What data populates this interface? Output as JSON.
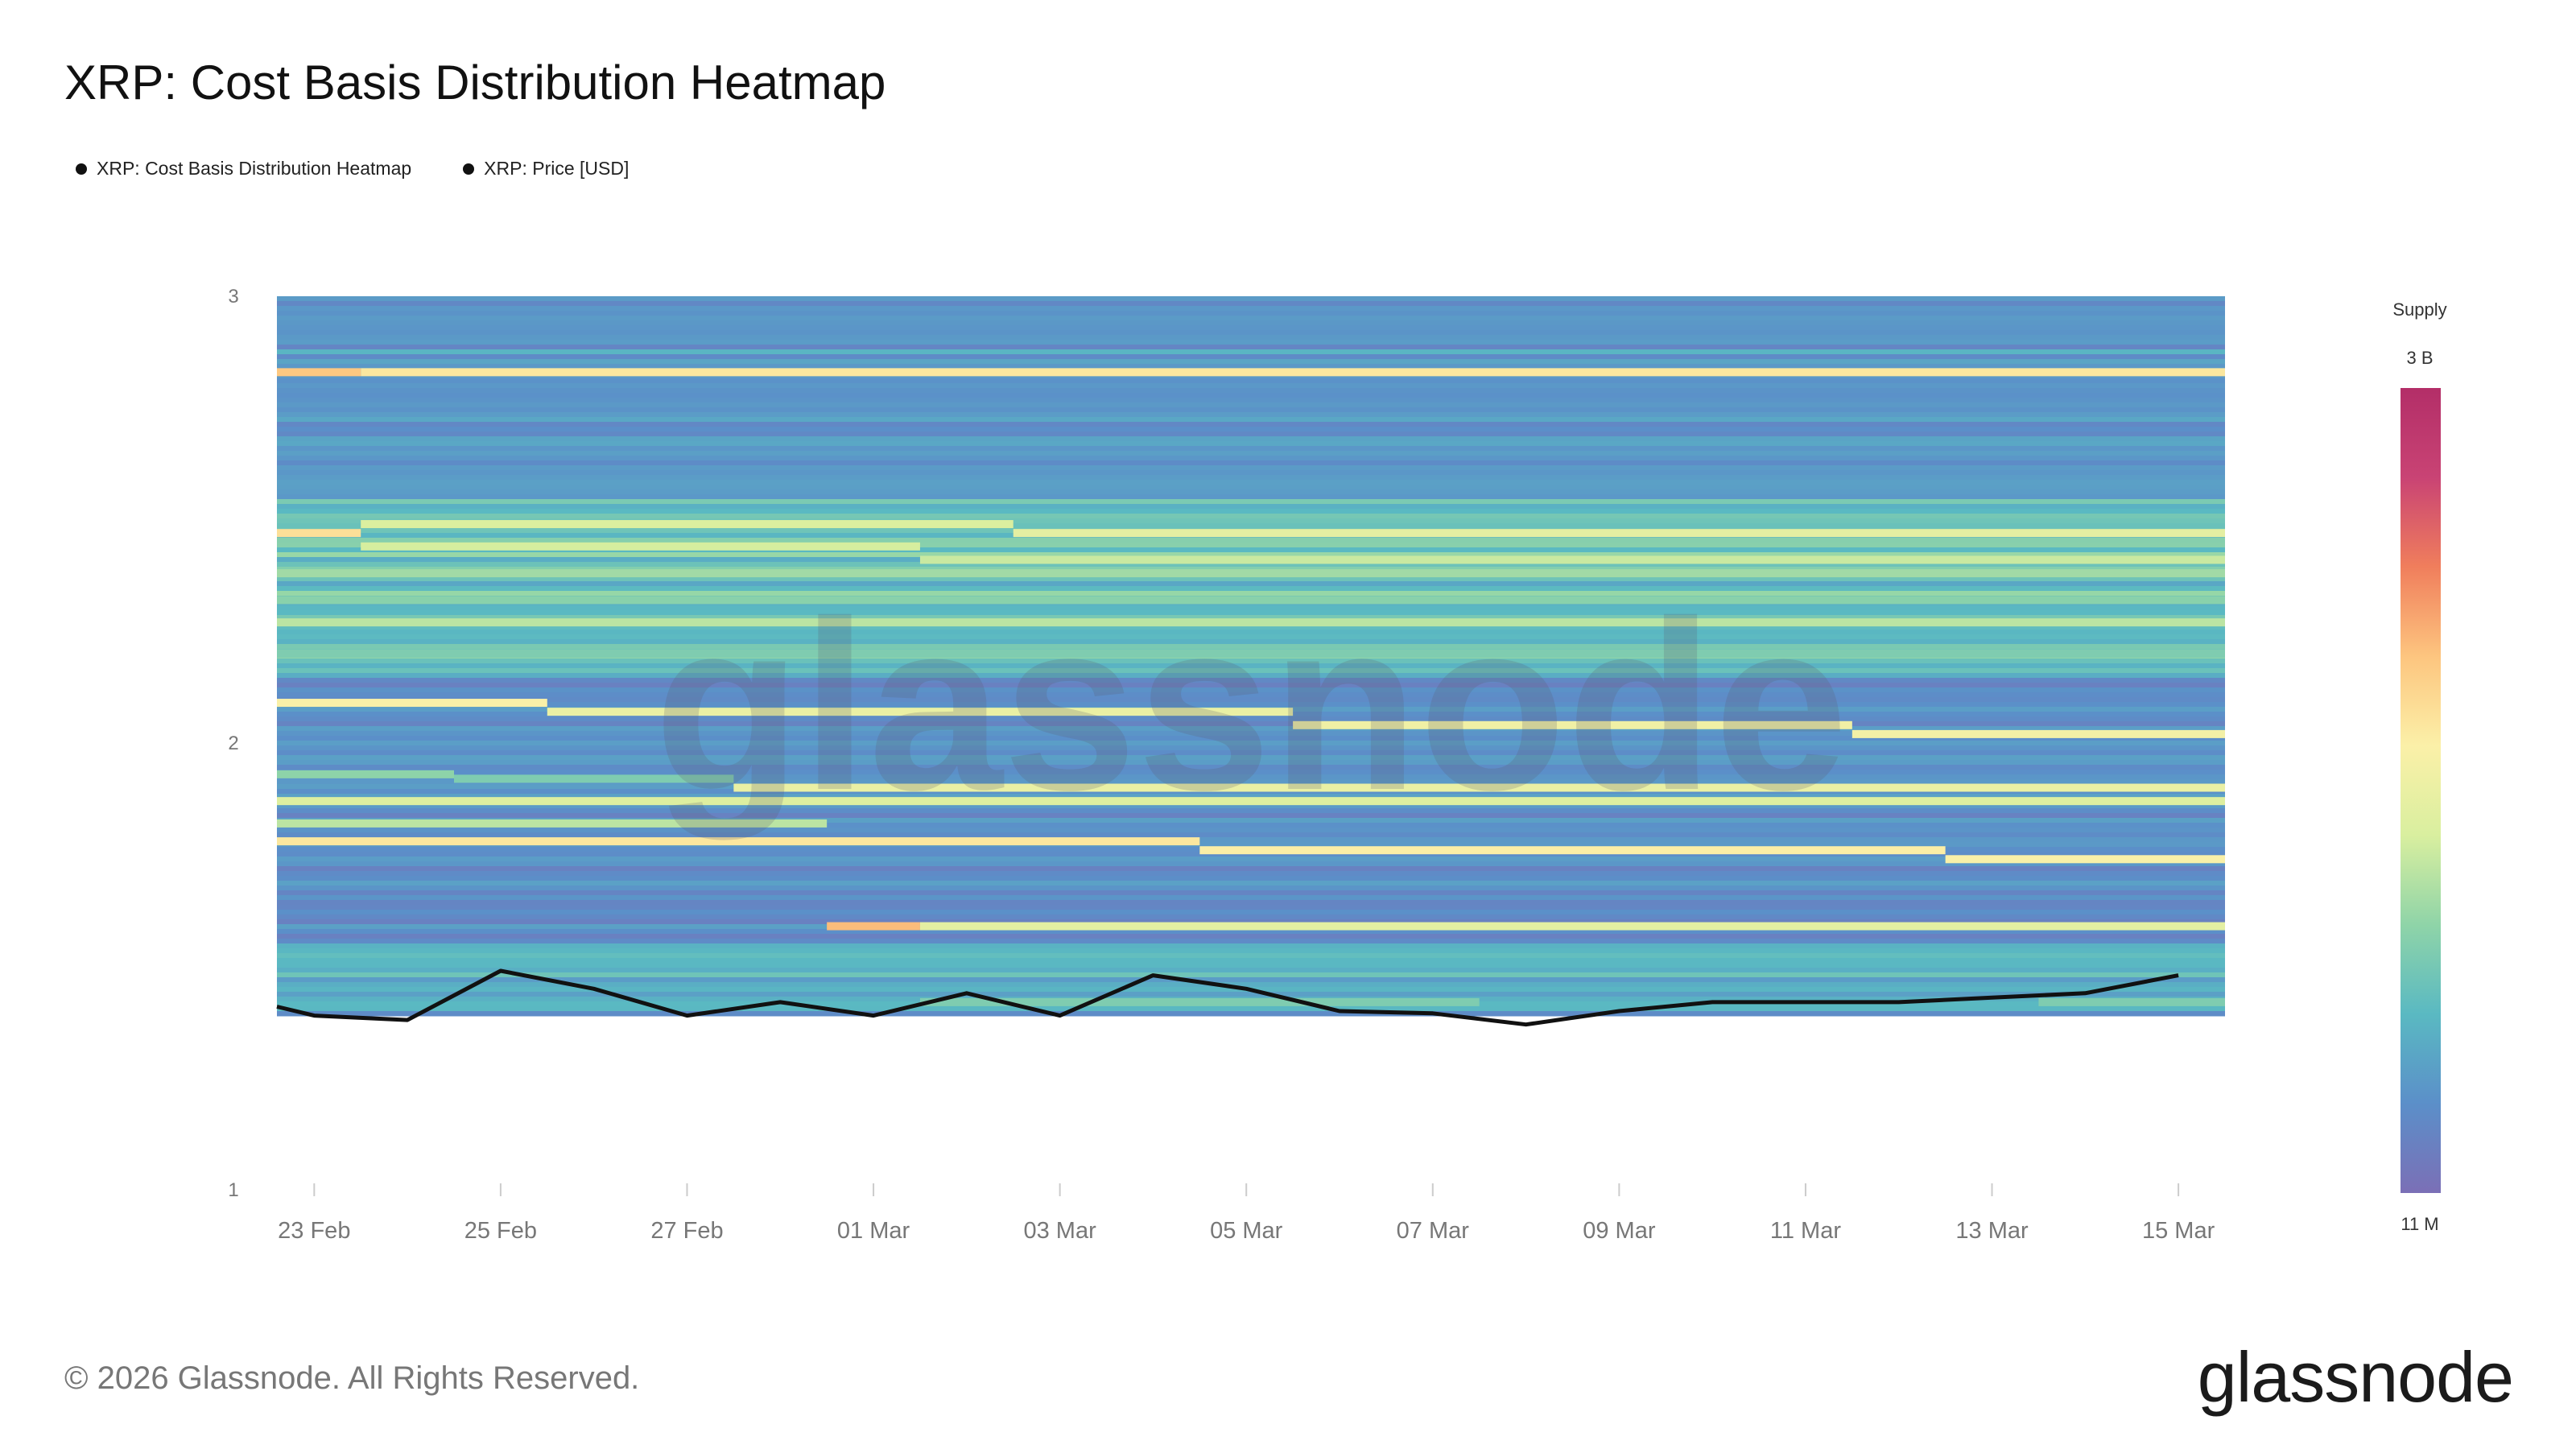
{
  "title": "XRP: Cost Basis Distribution Heatmap",
  "legend": {
    "heatmap_label": "XRP: Cost Basis Distribution Heatmap",
    "price_label": "XRP: Price [USD]"
  },
  "colorbar": {
    "title": "Supply",
    "max_label": "3 B",
    "min_label": "11 M",
    "colors": [
      "#7b6fb6",
      "#5b8fc9",
      "#5ab9c2",
      "#8fd4a8",
      "#d9ef9f",
      "#fbf0a8",
      "#fdc57f",
      "#f07e5c",
      "#c94374",
      "#b32e68"
    ]
  },
  "watermark": "glassnode",
  "footer": {
    "copyright": "© 2026 Glassnode. All Rights Reserved.",
    "logo": "glassnode"
  },
  "chart_data": {
    "type": "heatmap",
    "title": "XRP: Cost Basis Distribution Heatmap",
    "xlabel": "",
    "ylabel": "",
    "x_tick_labels": [
      "23 Feb",
      "25 Feb",
      "27 Feb",
      "01 Mar",
      "03 Mar",
      "05 Mar",
      "07 Mar",
      "09 Mar",
      "11 Mar",
      "13 Mar",
      "15 Mar"
    ],
    "x_range_days": [
      -0.4,
      20.5
    ],
    "y_tick_labels": [
      "3",
      "2",
      "1"
    ],
    "y_tick_values": [
      3,
      2,
      1
    ],
    "ylim": [
      1,
      3
    ],
    "heatmap_price_range": [
      1.39,
      3.0
    ],
    "colorbar_range_label": [
      "11 M",
      "3 B"
    ],
    "bands": [
      {
        "price": 2.83,
        "level": 0.58,
        "start_day": 0.5,
        "end_day": 20.5
      },
      {
        "price": 2.83,
        "level": 0.66,
        "start_day": -0.4,
        "end_day": 0.5
      },
      {
        "price": 2.47,
        "level": 0.6,
        "start_day": -0.4,
        "end_day": 0.5
      },
      {
        "price": 2.47,
        "level": 0.48,
        "start_day": 7.5,
        "end_day": 20.5
      },
      {
        "price": 2.49,
        "level": 0.45,
        "start_day": 0.5,
        "end_day": 7.5
      },
      {
        "price": 2.44,
        "level": 0.44,
        "start_day": 0.5,
        "end_day": 6.5
      },
      {
        "price": 2.41,
        "level": 0.42,
        "start_day": 6.5,
        "end_day": 20.5
      },
      {
        "price": 2.38,
        "level": 0.36,
        "start_day": -0.4,
        "end_day": 20.5
      },
      {
        "price": 2.32,
        "level": 0.32,
        "start_day": -0.4,
        "end_day": 20.5
      },
      {
        "price": 2.27,
        "level": 0.4,
        "start_day": -0.4,
        "end_day": 20.5
      },
      {
        "price": 2.2,
        "level": 0.3,
        "start_day": -0.4,
        "end_day": 20.5
      },
      {
        "price": 2.09,
        "level": 0.55,
        "start_day": -0.4,
        "end_day": 2.5
      },
      {
        "price": 2.07,
        "level": 0.5,
        "start_day": 2.5,
        "end_day": 10.5
      },
      {
        "price": 2.04,
        "level": 0.52,
        "start_day": 10.5,
        "end_day": 16.5
      },
      {
        "price": 2.02,
        "level": 0.53,
        "start_day": 16.5,
        "end_day": 20.5
      },
      {
        "price": 1.93,
        "level": 0.33,
        "start_day": -0.4,
        "end_day": 1.5
      },
      {
        "price": 1.92,
        "level": 0.3,
        "start_day": 1.5,
        "end_day": 4.5
      },
      {
        "price": 1.9,
        "level": 0.5,
        "start_day": 4.5,
        "end_day": 20.5
      },
      {
        "price": 1.87,
        "level": 0.46,
        "start_day": -0.4,
        "end_day": 20.5
      },
      {
        "price": 1.82,
        "level": 0.4,
        "start_day": -0.4,
        "end_day": 5.5
      },
      {
        "price": 1.78,
        "level": 0.58,
        "start_day": -0.4,
        "end_day": 9.5
      },
      {
        "price": 1.76,
        "level": 0.56,
        "start_day": 9.5,
        "end_day": 17.5
      },
      {
        "price": 1.74,
        "level": 0.55,
        "start_day": 17.5,
        "end_day": 20.5
      },
      {
        "price": 1.59,
        "level": 0.68,
        "start_day": 5.5,
        "end_day": 6.5
      },
      {
        "price": 1.59,
        "level": 0.48,
        "start_day": 6.5,
        "end_day": 20.5
      },
      {
        "price": 1.42,
        "level": 0.3,
        "start_day": 6.5,
        "end_day": 12.5
      },
      {
        "price": 1.42,
        "level": 0.3,
        "start_day": 18.5,
        "end_day": 20.5
      }
    ],
    "series": [
      {
        "name": "XRP: Price [USD]",
        "day_offset": [
          -0.4,
          0.0,
          1.0,
          2.0,
          3.0,
          4.0,
          5.0,
          6.0,
          7.0,
          8.0,
          9.0,
          10.0,
          11.0,
          12.0,
          13.0,
          14.0,
          15.0,
          16.0,
          17.0,
          18.0,
          19.0,
          20.0
        ],
        "values": [
          1.41,
          1.39,
          1.38,
          1.49,
          1.45,
          1.39,
          1.42,
          1.39,
          1.44,
          1.39,
          1.48,
          1.45,
          1.4,
          1.395,
          1.37,
          1.4,
          1.42,
          1.42,
          1.42,
          1.43,
          1.44,
          1.48
        ]
      }
    ]
  }
}
